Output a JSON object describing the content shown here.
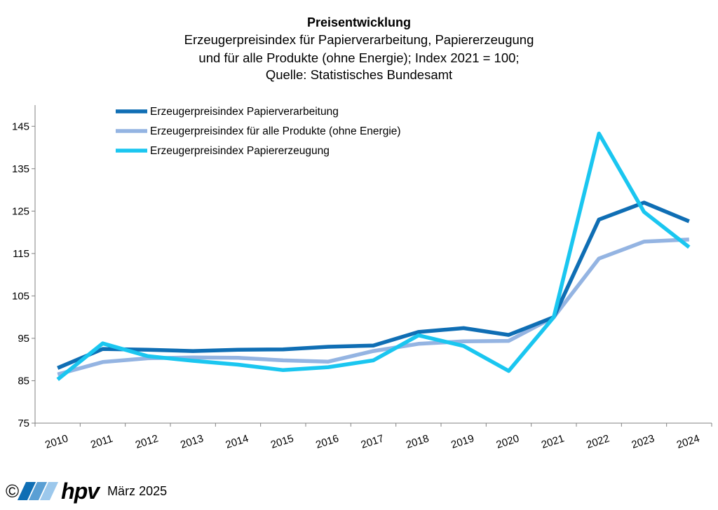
{
  "chart_data": {
    "type": "line",
    "title": "Preisentwicklung",
    "subtitle": [
      "Erzeugerpreisindex für Papierverarbeitung, Papiererzeugung",
      "und für alle Produkte (ohne Energie); Index 2021 = 100;",
      "Quelle: Statistisches Bundesamt"
    ],
    "categories": [
      "2010",
      "2011",
      "2012",
      "2013",
      "2014",
      "2015",
      "2016",
      "2017",
      "2018",
      "2019",
      "2020",
      "2021",
      "2022",
      "2023",
      "2024"
    ],
    "yticks": [
      "75",
      "85",
      "95",
      "105",
      "115",
      "125",
      "135",
      "145"
    ],
    "ylim": [
      75,
      150
    ],
    "grid": false,
    "legend_position": "top-left",
    "series": [
      {
        "name": "Erzeugerpreisindex Papierverarbeitung",
        "color": "#0f6eb4",
        "values": [
          88.0,
          92.5,
          92.3,
          92.0,
          92.3,
          92.4,
          93.0,
          93.3,
          96.5,
          97.4,
          95.8,
          100.0,
          123.0,
          127.0,
          122.6
        ]
      },
      {
        "name": "Erzeugerpreisindex für alle Produkte (ohne Energie)",
        "color": "#94b4e2",
        "values": [
          86.5,
          89.4,
          90.3,
          90.5,
          90.4,
          89.8,
          89.5,
          92.0,
          93.7,
          94.3,
          94.4,
          100.0,
          113.8,
          117.8,
          118.3
        ]
      },
      {
        "name": "Erzeugerpreisindex Papiererzeugung",
        "color": "#1ac6f0",
        "values": [
          85.3,
          93.8,
          90.8,
          89.7,
          88.8,
          87.5,
          88.2,
          89.8,
          95.7,
          93.2,
          87.3,
          100.0,
          143.3,
          124.8,
          116.5
        ]
      }
    ]
  },
  "footer": {
    "copyright_symbol": "©",
    "logo_text": "hpv",
    "logo_colors": [
      "#0f6eb4",
      "#5a9fd4",
      "#9cc8ec"
    ],
    "date": "März 2025"
  }
}
